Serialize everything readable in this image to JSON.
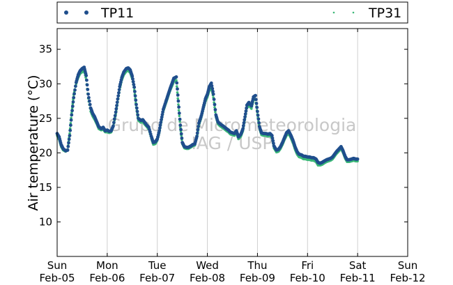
{
  "chart_data": {
    "type": "scatter",
    "title": "",
    "ylabel": "Air temperature (°C)",
    "xlabel": "",
    "x_unit": "days since Feb-05 00:00",
    "xlim": [
      0,
      7
    ],
    "ylim": [
      5,
      38
    ],
    "yticks": [
      10,
      15,
      20,
      25,
      30,
      35
    ],
    "x_ticks": [
      {
        "day": "Sun",
        "date": "Feb-05"
      },
      {
        "day": "Mon",
        "date": "Feb-06"
      },
      {
        "day": "Tue",
        "date": "Feb-07"
      },
      {
        "day": "Wed",
        "date": "Feb-08"
      },
      {
        "day": "Thu",
        "date": "Feb-09"
      },
      {
        "day": "Fri",
        "date": "Feb-10"
      },
      {
        "day": "Sat",
        "date": "Feb-11"
      },
      {
        "day": "Sun",
        "date": "Feb-12"
      }
    ],
    "grid": "vertical",
    "legend_position": "top",
    "watermark": [
      "Grupo de Micrometeorologia",
      "IAG / USP"
    ],
    "series": [
      {
        "name": "TP11",
        "color": "#1f4e8c",
        "marker": "dot-large",
        "points": [
          [
            0.0,
            22.8
          ],
          [
            0.04,
            22.3
          ],
          [
            0.08,
            21.2
          ],
          [
            0.12,
            20.6
          ],
          [
            0.17,
            20.3
          ],
          [
            0.21,
            20.4
          ],
          [
            0.25,
            22.5
          ],
          [
            0.29,
            25.5
          ],
          [
            0.33,
            28.0
          ],
          [
            0.38,
            30.2
          ],
          [
            0.42,
            31.3
          ],
          [
            0.46,
            31.9
          ],
          [
            0.5,
            32.2
          ],
          [
            0.54,
            32.4
          ],
          [
            0.58,
            31.2
          ],
          [
            0.62,
            28.5
          ],
          [
            0.67,
            26.5
          ],
          [
            0.71,
            25.7
          ],
          [
            0.75,
            25.2
          ],
          [
            0.79,
            24.5
          ],
          [
            0.83,
            23.8
          ],
          [
            0.88,
            23.5
          ],
          [
            0.92,
            23.7
          ],
          [
            0.96,
            23.2
          ],
          [
            1.0,
            23.3
          ],
          [
            1.04,
            23.1
          ],
          [
            1.08,
            23.2
          ],
          [
            1.12,
            23.9
          ],
          [
            1.17,
            25.9
          ],
          [
            1.21,
            27.8
          ],
          [
            1.25,
            29.6
          ],
          [
            1.29,
            30.9
          ],
          [
            1.33,
            31.7
          ],
          [
            1.38,
            32.2
          ],
          [
            1.42,
            32.3
          ],
          [
            1.46,
            32.0
          ],
          [
            1.5,
            31.1
          ],
          [
            1.54,
            29.5
          ],
          [
            1.58,
            27.0
          ],
          [
            1.62,
            25.0
          ],
          [
            1.67,
            24.7
          ],
          [
            1.71,
            24.8
          ],
          [
            1.75,
            24.4
          ],
          [
            1.79,
            24.0
          ],
          [
            1.83,
            23.7
          ],
          [
            1.88,
            22.4
          ],
          [
            1.92,
            21.5
          ],
          [
            1.96,
            21.6
          ],
          [
            2.0,
            22.0
          ],
          [
            2.04,
            23.2
          ],
          [
            2.08,
            24.8
          ],
          [
            2.12,
            26.3
          ],
          [
            2.17,
            27.4
          ],
          [
            2.21,
            28.3
          ],
          [
            2.25,
            29.2
          ],
          [
            2.29,
            30.0
          ],
          [
            2.33,
            30.8
          ],
          [
            2.38,
            31.0
          ],
          [
            2.42,
            27.5
          ],
          [
            2.46,
            24.0
          ],
          [
            2.5,
            21.5
          ],
          [
            2.54,
            20.9
          ],
          [
            2.58,
            20.8
          ],
          [
            2.62,
            20.8
          ],
          [
            2.67,
            21.0
          ],
          [
            2.71,
            21.2
          ],
          [
            2.75,
            21.3
          ],
          [
            2.79,
            22.4
          ],
          [
            2.83,
            24.3
          ],
          [
            2.88,
            25.4
          ],
          [
            2.92,
            26.6
          ],
          [
            2.96,
            27.8
          ],
          [
            3.0,
            28.5
          ],
          [
            3.04,
            29.6
          ],
          [
            3.08,
            30.1
          ],
          [
            3.12,
            28.5
          ],
          [
            3.17,
            25.5
          ],
          [
            3.21,
            24.5
          ],
          [
            3.25,
            24.2
          ],
          [
            3.29,
            24.0
          ],
          [
            3.33,
            23.8
          ],
          [
            3.38,
            23.5
          ],
          [
            3.42,
            23.3
          ],
          [
            3.46,
            23.0
          ],
          [
            3.5,
            22.9
          ],
          [
            3.54,
            22.8
          ],
          [
            3.58,
            23.2
          ],
          [
            3.62,
            22.3
          ],
          [
            3.67,
            22.7
          ],
          [
            3.71,
            23.5
          ],
          [
            3.75,
            25.2
          ],
          [
            3.79,
            26.9
          ],
          [
            3.83,
            27.3
          ],
          [
            3.88,
            26.8
          ],
          [
            3.92,
            28.1
          ],
          [
            3.96,
            28.3
          ],
          [
            4.0,
            26.0
          ],
          [
            4.04,
            23.8
          ],
          [
            4.08,
            22.9
          ],
          [
            4.12,
            22.8
          ],
          [
            4.17,
            22.8
          ],
          [
            4.21,
            22.7
          ],
          [
            4.25,
            22.8
          ],
          [
            4.29,
            22.5
          ],
          [
            4.33,
            21.0
          ],
          [
            4.38,
            20.4
          ],
          [
            4.42,
            20.5
          ],
          [
            4.46,
            20.9
          ],
          [
            4.5,
            21.5
          ],
          [
            4.54,
            22.2
          ],
          [
            4.58,
            22.9
          ],
          [
            4.62,
            23.2
          ],
          [
            4.67,
            22.5
          ],
          [
            4.71,
            21.8
          ],
          [
            4.75,
            20.9
          ],
          [
            4.79,
            20.2
          ],
          [
            4.83,
            19.8
          ],
          [
            4.88,
            19.7
          ],
          [
            4.92,
            19.5
          ],
          [
            4.96,
            19.5
          ],
          [
            5.0,
            19.4
          ],
          [
            5.04,
            19.4
          ],
          [
            5.08,
            19.3
          ],
          [
            5.12,
            19.3
          ],
          [
            5.17,
            19.1
          ],
          [
            5.21,
            18.6
          ],
          [
            5.25,
            18.5
          ],
          [
            5.29,
            18.6
          ],
          [
            5.33,
            18.8
          ],
          [
            5.38,
            19.0
          ],
          [
            5.42,
            19.1
          ],
          [
            5.46,
            19.2
          ],
          [
            5.5,
            19.4
          ],
          [
            5.54,
            19.8
          ],
          [
            5.58,
            20.2
          ],
          [
            5.62,
            20.5
          ],
          [
            5.67,
            20.9
          ],
          [
            5.71,
            20.3
          ],
          [
            5.75,
            19.5
          ],
          [
            5.79,
            19.0
          ],
          [
            5.83,
            19.0
          ],
          [
            5.88,
            19.1
          ],
          [
            5.92,
            19.2
          ],
          [
            5.96,
            19.1
          ],
          [
            6.0,
            19.1
          ]
        ]
      },
      {
        "name": "TP31",
        "color": "#3cb878",
        "marker": "dot-small",
        "points": [
          [
            0.0,
            22.5
          ],
          [
            0.04,
            21.9
          ],
          [
            0.08,
            20.9
          ],
          [
            0.12,
            20.4
          ],
          [
            0.17,
            20.2
          ],
          [
            0.21,
            20.5
          ],
          [
            0.25,
            22.8
          ],
          [
            0.29,
            25.8
          ],
          [
            0.33,
            28.4
          ],
          [
            0.38,
            30.0
          ],
          [
            0.42,
            30.9
          ],
          [
            0.46,
            31.5
          ],
          [
            0.5,
            31.7
          ],
          [
            0.54,
            31.9
          ],
          [
            0.58,
            30.6
          ],
          [
            0.62,
            27.9
          ],
          [
            0.67,
            26.0
          ],
          [
            0.71,
            25.3
          ],
          [
            0.75,
            24.8
          ],
          [
            0.79,
            24.2
          ],
          [
            0.83,
            23.5
          ],
          [
            0.88,
            23.3
          ],
          [
            0.92,
            23.4
          ],
          [
            0.96,
            23.0
          ],
          [
            1.0,
            23.0
          ],
          [
            1.04,
            22.9
          ],
          [
            1.08,
            23.0
          ],
          [
            1.12,
            23.8
          ],
          [
            1.17,
            25.6
          ],
          [
            1.21,
            27.4
          ],
          [
            1.25,
            29.2
          ],
          [
            1.29,
            30.5
          ],
          [
            1.33,
            31.3
          ],
          [
            1.38,
            31.8
          ],
          [
            1.42,
            31.9
          ],
          [
            1.46,
            31.6
          ],
          [
            1.5,
            30.7
          ],
          [
            1.54,
            29.1
          ],
          [
            1.58,
            26.6
          ],
          [
            1.62,
            24.7
          ],
          [
            1.67,
            24.4
          ],
          [
            1.71,
            24.5
          ],
          [
            1.75,
            24.1
          ],
          [
            1.79,
            23.8
          ],
          [
            1.83,
            23.4
          ],
          [
            1.88,
            22.1
          ],
          [
            1.92,
            21.2
          ],
          [
            1.96,
            21.3
          ],
          [
            2.0,
            21.8
          ],
          [
            2.04,
            22.9
          ],
          [
            2.08,
            24.5
          ],
          [
            2.12,
            26.0
          ],
          [
            2.17,
            27.1
          ],
          [
            2.21,
            28.0
          ],
          [
            2.25,
            28.9
          ],
          [
            2.29,
            29.6
          ],
          [
            2.33,
            30.3
          ],
          [
            2.38,
            30.5
          ],
          [
            2.42,
            27.0
          ],
          [
            2.46,
            23.7
          ],
          [
            2.5,
            21.3
          ],
          [
            2.54,
            20.7
          ],
          [
            2.58,
            20.6
          ],
          [
            2.62,
            20.6
          ],
          [
            2.67,
            20.8
          ],
          [
            2.71,
            21.0
          ],
          [
            2.75,
            21.1
          ],
          [
            2.79,
            22.2
          ],
          [
            2.83,
            24.0
          ],
          [
            2.88,
            25.1
          ],
          [
            2.92,
            26.3
          ],
          [
            2.96,
            27.4
          ],
          [
            3.0,
            28.1
          ],
          [
            3.04,
            29.0
          ],
          [
            3.08,
            29.4
          ],
          [
            3.12,
            28.0
          ],
          [
            3.17,
            25.2
          ],
          [
            3.21,
            24.2
          ],
          [
            3.25,
            23.9
          ],
          [
            3.29,
            23.7
          ],
          [
            3.33,
            23.5
          ],
          [
            3.38,
            23.2
          ],
          [
            3.42,
            23.0
          ],
          [
            3.46,
            22.7
          ],
          [
            3.5,
            22.6
          ],
          [
            3.54,
            22.5
          ],
          [
            3.58,
            22.9
          ],
          [
            3.62,
            22.0
          ],
          [
            3.67,
            22.4
          ],
          [
            3.71,
            23.2
          ],
          [
            3.75,
            24.9
          ],
          [
            3.79,
            26.5
          ],
          [
            3.83,
            26.9
          ],
          [
            3.88,
            26.4
          ],
          [
            3.92,
            27.6
          ],
          [
            3.96,
            27.8
          ],
          [
            4.0,
            25.6
          ],
          [
            4.04,
            23.5
          ],
          [
            4.08,
            22.6
          ],
          [
            4.12,
            22.5
          ],
          [
            4.17,
            22.5
          ],
          [
            4.21,
            22.4
          ],
          [
            4.25,
            22.5
          ],
          [
            4.29,
            22.2
          ],
          [
            4.33,
            20.7
          ],
          [
            4.38,
            20.1
          ],
          [
            4.42,
            20.2
          ],
          [
            4.46,
            20.6
          ],
          [
            4.5,
            21.2
          ],
          [
            4.54,
            21.9
          ],
          [
            4.58,
            22.5
          ],
          [
            4.62,
            22.8
          ],
          [
            4.67,
            22.1
          ],
          [
            4.71,
            21.4
          ],
          [
            4.75,
            20.5
          ],
          [
            4.79,
            19.8
          ],
          [
            4.83,
            19.4
          ],
          [
            4.88,
            19.3
          ],
          [
            4.92,
            19.1
          ],
          [
            4.96,
            19.1
          ],
          [
            5.0,
            19.0
          ],
          [
            5.04,
            19.0
          ],
          [
            5.08,
            18.9
          ],
          [
            5.12,
            18.9
          ],
          [
            5.17,
            18.7
          ],
          [
            5.21,
            18.2
          ],
          [
            5.25,
            18.2
          ],
          [
            5.29,
            18.3
          ],
          [
            5.33,
            18.5
          ],
          [
            5.38,
            18.7
          ],
          [
            5.42,
            18.8
          ],
          [
            5.46,
            18.9
          ],
          [
            5.5,
            19.1
          ],
          [
            5.54,
            19.5
          ],
          [
            5.58,
            19.9
          ],
          [
            5.62,
            20.2
          ],
          [
            5.67,
            20.6
          ],
          [
            5.71,
            20.0
          ],
          [
            5.75,
            19.2
          ],
          [
            5.79,
            18.7
          ],
          [
            5.83,
            18.7
          ],
          [
            5.88,
            18.8
          ],
          [
            5.92,
            18.9
          ],
          [
            5.96,
            18.8
          ],
          [
            6.0,
            18.8
          ]
        ]
      }
    ]
  }
}
